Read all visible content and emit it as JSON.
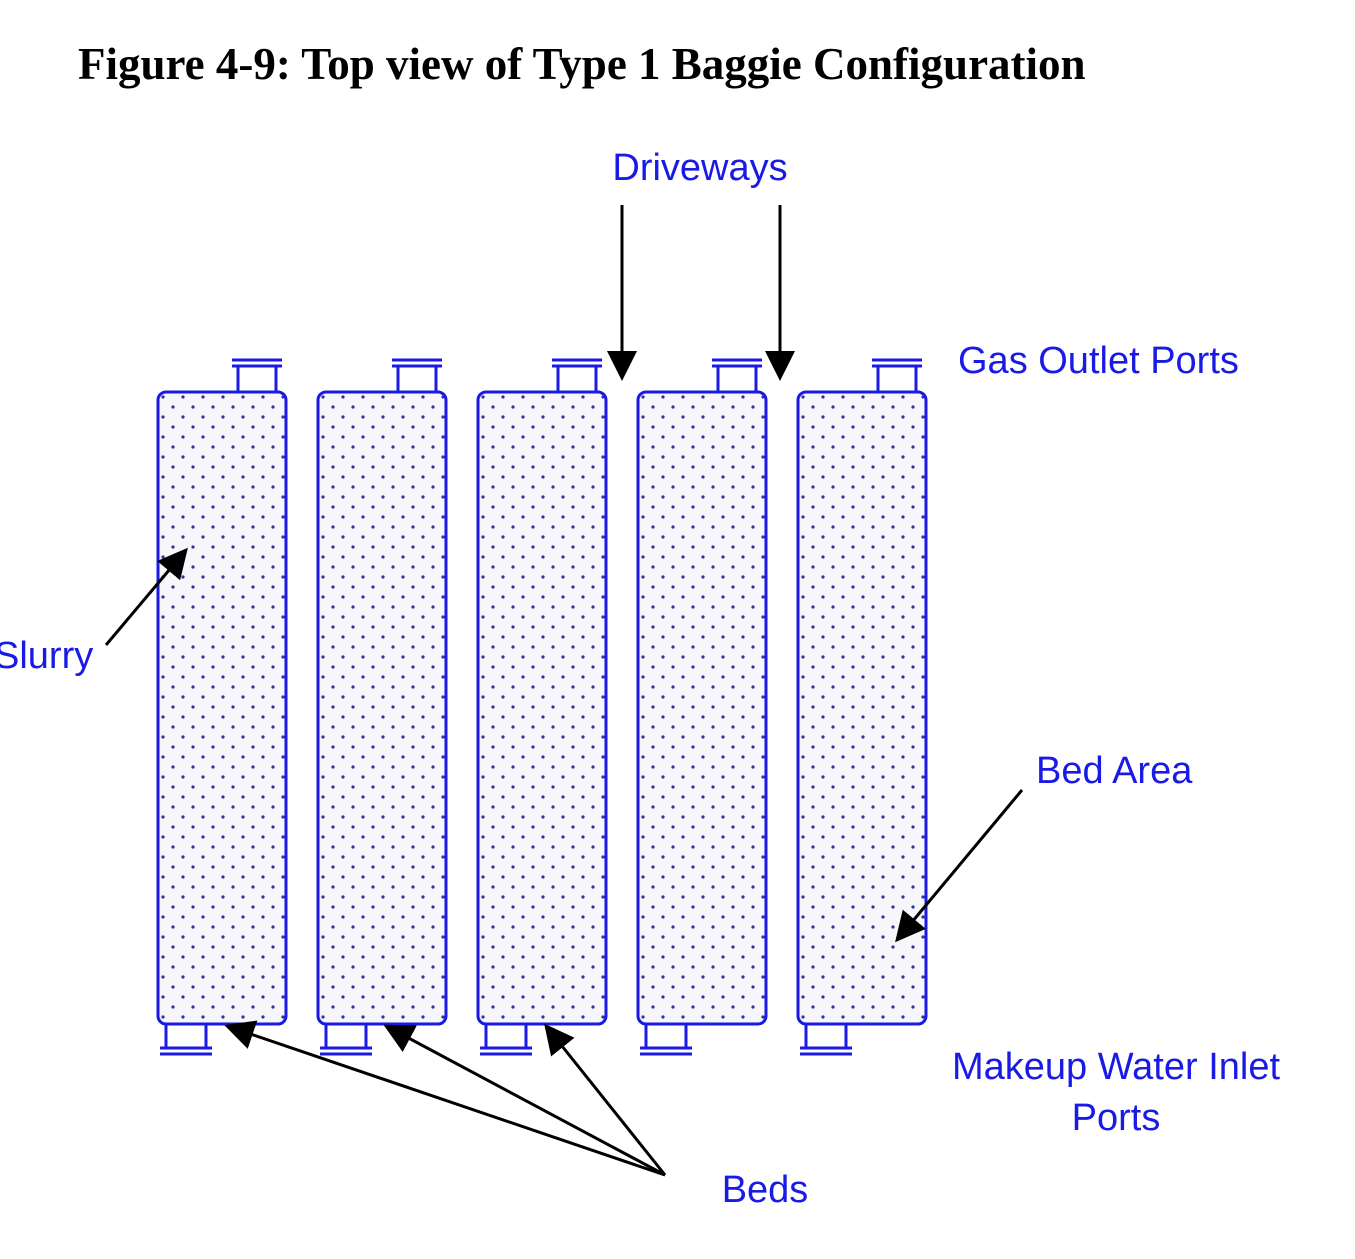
{
  "title": "Figure 4-9: Top view of Type 1 Baggie Configuration",
  "colors": {
    "outline": "#1a1ae6",
    "label": "#1a1ae6",
    "arrow": "#000000",
    "dot_fill": "#3030a0",
    "bed_fill": "#f6f6fb"
  },
  "labels": {
    "driveways": "Driveways",
    "gas_outlet_ports": "Gas Outlet Ports",
    "slurry": "Slurry",
    "bed_area": "Bed Area",
    "makeup_line1": "Makeup Water Inlet",
    "makeup_line2": "Ports",
    "beds": "Beds"
  },
  "bed_count": 5
}
